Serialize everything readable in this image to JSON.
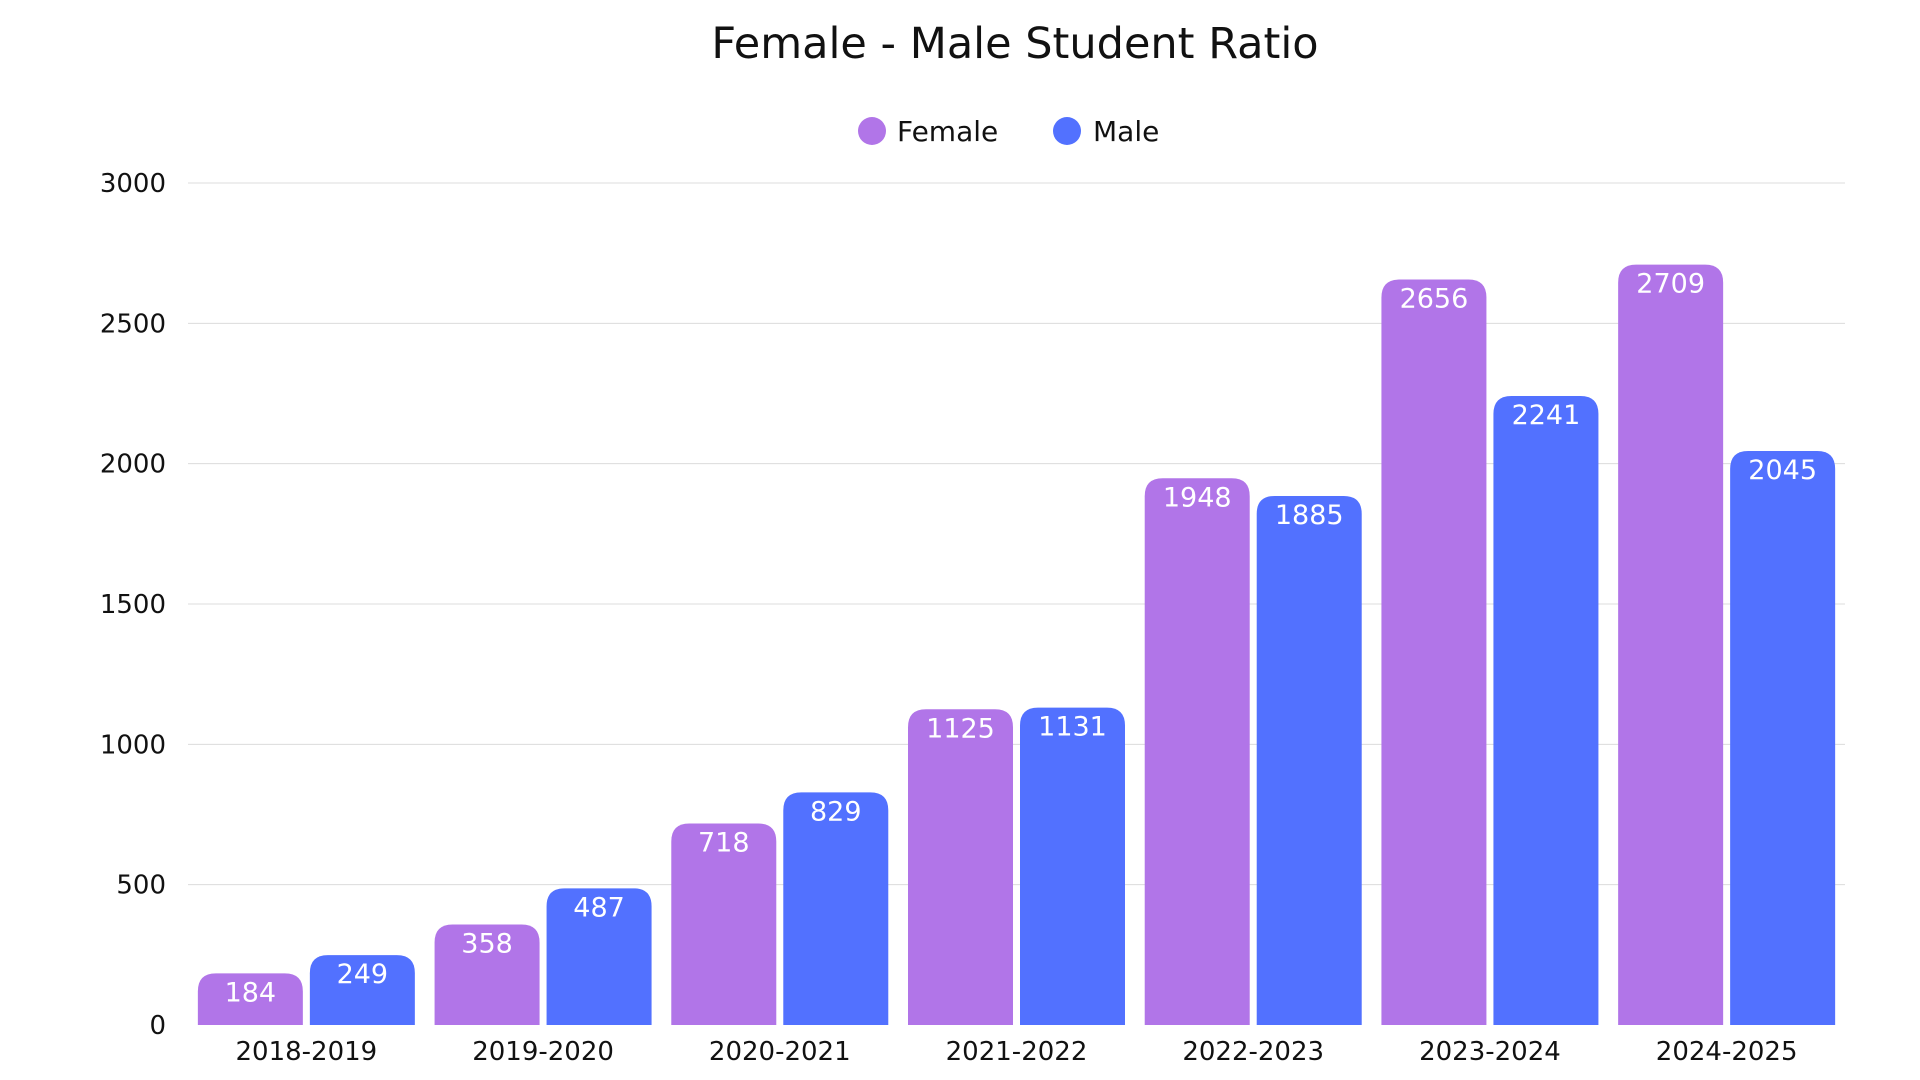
{
  "chart_data": {
    "type": "bar",
    "title": "Female - Male Student Ratio",
    "xlabel": "",
    "ylabel": "",
    "categories": [
      "2018-2019",
      "2019-2020",
      "2020-2021",
      "2021-2022",
      "2022-2023",
      "2023-2024",
      "2024-2025"
    ],
    "series": [
      {
        "name": "Female",
        "color": "#b175e8",
        "values": [
          184,
          358,
          718,
          1125,
          1948,
          2656,
          2709
        ]
      },
      {
        "name": "Male",
        "color": "#5271ff",
        "values": [
          249,
          487,
          829,
          1131,
          1885,
          2241,
          2045
        ]
      }
    ],
    "ylim": [
      0,
      3000
    ],
    "yticks": [
      0,
      500,
      1000,
      1500,
      2000,
      2500,
      3000
    ],
    "grid": true,
    "legend": "top-center",
    "data_labels": true
  }
}
